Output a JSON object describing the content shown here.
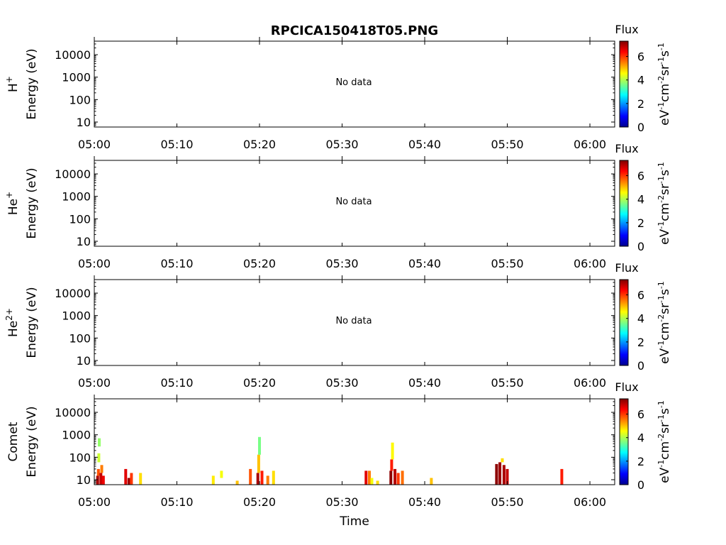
{
  "title": "RPCICA150418T05.PNG",
  "xlabel": "Time",
  "time_ticks": [
    "05:00",
    "05:10",
    "05:20",
    "05:30",
    "05:40",
    "05:50",
    "06:00"
  ],
  "energy_ticks": [
    "10",
    "100",
    "1000",
    "10000"
  ],
  "colorbar": {
    "title": "Flux",
    "ticks": [
      "0",
      "2",
      "4",
      "6"
    ],
    "range": [
      0,
      7.3
    ],
    "colormap": "jet"
  },
  "no_data_text": "No data",
  "chart_data": [
    {
      "type": "heatmap",
      "title": "RPCICA150418T05.PNG",
      "ylabel_species": "H",
      "ylabel_charge": "+",
      "ylabel_units": "Energy (eV)",
      "has_data": false,
      "annotation": "No data",
      "x_range": [
        "05:00",
        "06:03"
      ],
      "y_range": [
        6,
        40000
      ],
      "y_scale": "log"
    },
    {
      "type": "heatmap",
      "ylabel_species": "He",
      "ylabel_charge": "+",
      "ylabel_units": "Energy (eV)",
      "has_data": false,
      "annotation": "No data",
      "x_range": [
        "05:00",
        "06:03"
      ],
      "y_range": [
        6,
        40000
      ],
      "y_scale": "log"
    },
    {
      "type": "heatmap",
      "ylabel_species": "He",
      "ylabel_charge": "2+",
      "ylabel_units": "Energy (eV)",
      "has_data": false,
      "annotation": "No data",
      "x_range": [
        "05:00",
        "06:03"
      ],
      "y_range": [
        6,
        40000
      ],
      "y_scale": "log"
    },
    {
      "type": "heatmap",
      "ylabel_species": "Comet",
      "ylabel_charge": "",
      "ylabel_units": "Energy (eV)",
      "has_data": true,
      "xlabel": "Time",
      "x_range": [
        "05:00",
        "06:03"
      ],
      "y_range": [
        6,
        40000
      ],
      "y_scale": "log",
      "cells_note": "t in minutes after 05:00, e_lo/e_hi in eV, v = log flux",
      "cells": [
        {
          "t": 0.4,
          "e_lo": 6,
          "e_hi": 15,
          "v": 7.0
        },
        {
          "t": 0.5,
          "e_lo": 15,
          "e_hi": 30,
          "v": 5.8
        },
        {
          "t": 0.55,
          "e_lo": 60,
          "e_hi": 150,
          "v": 4.2
        },
        {
          "t": 0.6,
          "e_lo": 300,
          "e_hi": 700,
          "v": 3.8
        },
        {
          "t": 0.8,
          "e_lo": 6,
          "e_hi": 20,
          "v": 6.8
        },
        {
          "t": 0.9,
          "e_lo": 20,
          "e_hi": 45,
          "v": 5.5
        },
        {
          "t": 1.1,
          "e_lo": 6,
          "e_hi": 15,
          "v": 6.5
        },
        {
          "t": 3.8,
          "e_lo": 6,
          "e_hi": 30,
          "v": 6.6
        },
        {
          "t": 4.2,
          "e_lo": 6,
          "e_hi": 12,
          "v": 7.1
        },
        {
          "t": 4.5,
          "e_lo": 6,
          "e_hi": 20,
          "v": 6.0
        },
        {
          "t": 5.6,
          "e_lo": 6,
          "e_hi": 20,
          "v": 4.8
        },
        {
          "t": 14.4,
          "e_lo": 6,
          "e_hi": 15,
          "v": 4.7
        },
        {
          "t": 15.4,
          "e_lo": 12,
          "e_hi": 25,
          "v": 4.5
        },
        {
          "t": 17.3,
          "e_lo": 6,
          "e_hi": 9,
          "v": 5.0
        },
        {
          "t": 18.9,
          "e_lo": 6,
          "e_hi": 30,
          "v": 5.8
        },
        {
          "t": 19.8,
          "e_lo": 6,
          "e_hi": 20,
          "v": 7.0
        },
        {
          "t": 19.9,
          "e_lo": 20,
          "e_hi": 130,
          "v": 5.0
        },
        {
          "t": 20.0,
          "e_lo": 130,
          "e_hi": 800,
          "v": 3.6
        },
        {
          "t": 20.3,
          "e_lo": 6,
          "e_hi": 25,
          "v": 6.2
        },
        {
          "t": 21.0,
          "e_lo": 6,
          "e_hi": 15,
          "v": 5.5
        },
        {
          "t": 21.7,
          "e_lo": 6,
          "e_hi": 25,
          "v": 4.8
        },
        {
          "t": 32.9,
          "e_lo": 6,
          "e_hi": 25,
          "v": 6.6
        },
        {
          "t": 33.3,
          "e_lo": 6,
          "e_hi": 25,
          "v": 5.5
        },
        {
          "t": 33.6,
          "e_lo": 6,
          "e_hi": 12,
          "v": 4.5
        },
        {
          "t": 34.3,
          "e_lo": 6,
          "e_hi": 9,
          "v": 4.8
        },
        {
          "t": 35.9,
          "e_lo": 6,
          "e_hi": 25,
          "v": 7.2
        },
        {
          "t": 36.0,
          "e_lo": 25,
          "e_hi": 80,
          "v": 6.2
        },
        {
          "t": 36.1,
          "e_lo": 80,
          "e_hi": 450,
          "v": 4.6
        },
        {
          "t": 36.4,
          "e_lo": 6,
          "e_hi": 30,
          "v": 6.9
        },
        {
          "t": 36.8,
          "e_lo": 6,
          "e_hi": 20,
          "v": 6.0
        },
        {
          "t": 37.3,
          "e_lo": 6,
          "e_hi": 25,
          "v": 5.6
        },
        {
          "t": 40.8,
          "e_lo": 6,
          "e_hi": 12,
          "v": 5.0
        },
        {
          "t": 48.7,
          "e_lo": 6,
          "e_hi": 50,
          "v": 7.2
        },
        {
          "t": 49.1,
          "e_lo": 6,
          "e_hi": 60,
          "v": 7.1
        },
        {
          "t": 49.4,
          "e_lo": 60,
          "e_hi": 90,
          "v": 4.8
        },
        {
          "t": 49.6,
          "e_lo": 6,
          "e_hi": 45,
          "v": 7.0
        },
        {
          "t": 50.0,
          "e_lo": 6,
          "e_hi": 30,
          "v": 6.8
        },
        {
          "t": 56.6,
          "e_lo": 6,
          "e_hi": 30,
          "v": 6.2
        }
      ]
    }
  ]
}
